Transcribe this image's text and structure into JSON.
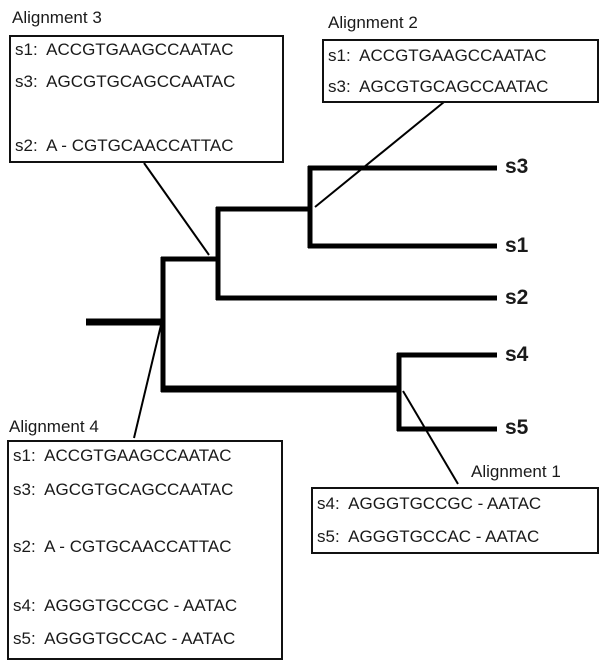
{
  "alignments": [
    {
      "title": "Alignment 3",
      "rows": [
        "s1:  ACCGTGAAGCCAATAC",
        "s3:  AGCGTGCAGCCAATAC",
        "s2:  A - CGTGCAACCATTAC"
      ]
    },
    {
      "title": "Alignment 2",
      "rows": [
        "s1:  ACCGTGAAGCCAATAC",
        "s3:  AGCGTGCAGCCAATAC"
      ]
    },
    {
      "title": "Alignment 4",
      "rows": [
        "s1:  ACCGTGAAGCCAATAC",
        "s3:  AGCGTGCAGCCAATAC",
        "s2:  A - CGTGCAACCATTAC",
        "s4:  AGGGTGCCGC - AATAC",
        "s5:  AGGGTGCCAC - AATAC"
      ]
    },
    {
      "title": "Alignment 1",
      "rows": [
        "s4:  AGGGTGCCGC - AATAC",
        "s5:  AGGGTGCCAC - AATAC"
      ]
    }
  ],
  "leaves": [
    "s3",
    "s1",
    "s2",
    "s4",
    "s5"
  ]
}
